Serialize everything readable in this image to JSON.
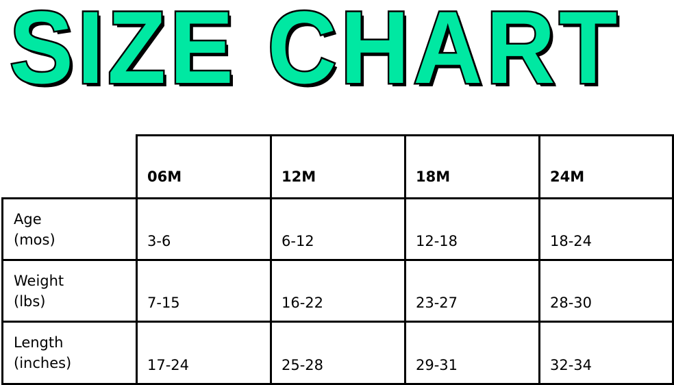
{
  "title": "SIZE CHART",
  "colors": {
    "title_fill": "#00e8a2",
    "outline": "#000000"
  },
  "table": {
    "columns": [
      "06M",
      "12M",
      "18M",
      "24M"
    ],
    "rows": [
      {
        "label": "Age\n(mos)",
        "values": [
          "3-6",
          "6-12",
          "12-18",
          "18-24"
        ]
      },
      {
        "label": "Weight\n(lbs)",
        "values": [
          "7-15",
          "16-22",
          "23-27",
          "28-30"
        ]
      },
      {
        "label": "Length\n(inches)",
        "values": [
          "17-24",
          "25-28",
          "29-31",
          "32-34"
        ]
      }
    ]
  }
}
